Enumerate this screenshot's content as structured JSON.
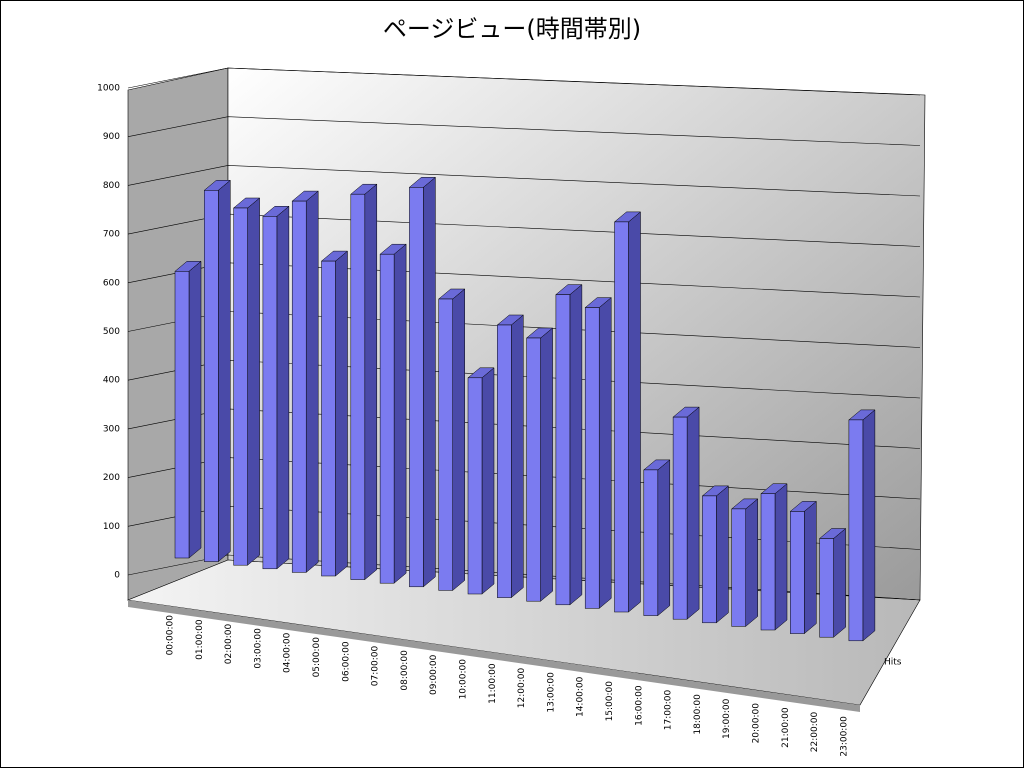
{
  "chart_data": {
    "type": "bar3d",
    "title": "ページビュー(時間帯別)",
    "categories": [
      "00:00:00",
      "01:00:00",
      "02:00:00",
      "03:00:00",
      "04:00:00",
      "05:00:00",
      "06:00:00",
      "07:00:00",
      "08:00:00",
      "09:00:00",
      "10:00:00",
      "11:00:00",
      "12:00:00",
      "13:00:00",
      "14:00:00",
      "15:00:00",
      "16:00:00",
      "17:00:00",
      "18:00:00",
      "19:00:00",
      "20:00:00",
      "21:00:00",
      "22:00:00",
      "23:00:00"
    ],
    "series": [
      {
        "name": "Hits",
        "color": "#7b7bf0",
        "values": [
          610,
          790,
          760,
          750,
          790,
          670,
          820,
          700,
          850,
          620,
          460,
          580,
          560,
          660,
          640,
          830,
          310,
          430,
          270,
          250,
          290,
          260,
          210,
          470
        ]
      }
    ],
    "ylim": [
      0,
      1000
    ],
    "yticks": [
      0,
      100,
      200,
      300,
      400,
      500,
      600,
      700,
      800,
      900,
      1000
    ],
    "grid": true
  }
}
